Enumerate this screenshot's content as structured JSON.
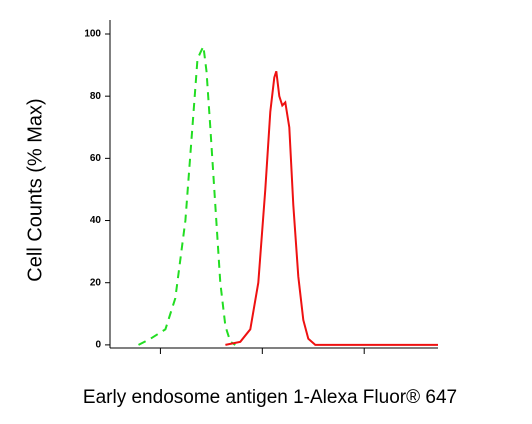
{
  "chart_data": {
    "type": "line",
    "ylabel": "Cell Counts (% Max)",
    "xlabel": "Early endosome antigen 1-Alexa Fluor® 647",
    "xscale": "log",
    "xlim": [
      32,
      53000
    ],
    "xticks": [
      100,
      1000,
      10000
    ],
    "ylim": [
      -1,
      104.5
    ],
    "yticks": [
      0,
      20,
      40,
      60,
      80,
      100
    ],
    "series": [
      {
        "color": "#22dd22",
        "dashed": true,
        "x": [
          61,
          80,
          112,
          140,
          176,
          206,
          231,
          247,
          264,
          283,
          309,
          346,
          387,
          434,
          486,
          543
        ],
        "values": [
          0,
          2,
          5,
          15,
          40,
          70,
          92,
          94,
          96,
          88,
          70,
          45,
          20,
          6,
          1,
          0
        ]
      },
      {
        "color": "#ee1111",
        "dashed": false,
        "x": [
          434,
          608,
          762,
          914,
          1070,
          1197,
          1312,
          1371,
          1468,
          1571,
          1680,
          1840,
          2014,
          2255,
          2524,
          2826,
          3311,
          4645,
          53000
        ],
        "values": [
          0,
          1,
          5,
          20,
          50,
          75,
          86,
          88,
          80,
          77,
          78,
          70,
          45,
          22,
          8,
          2,
          0,
          0,
          0
        ]
      }
    ]
  }
}
